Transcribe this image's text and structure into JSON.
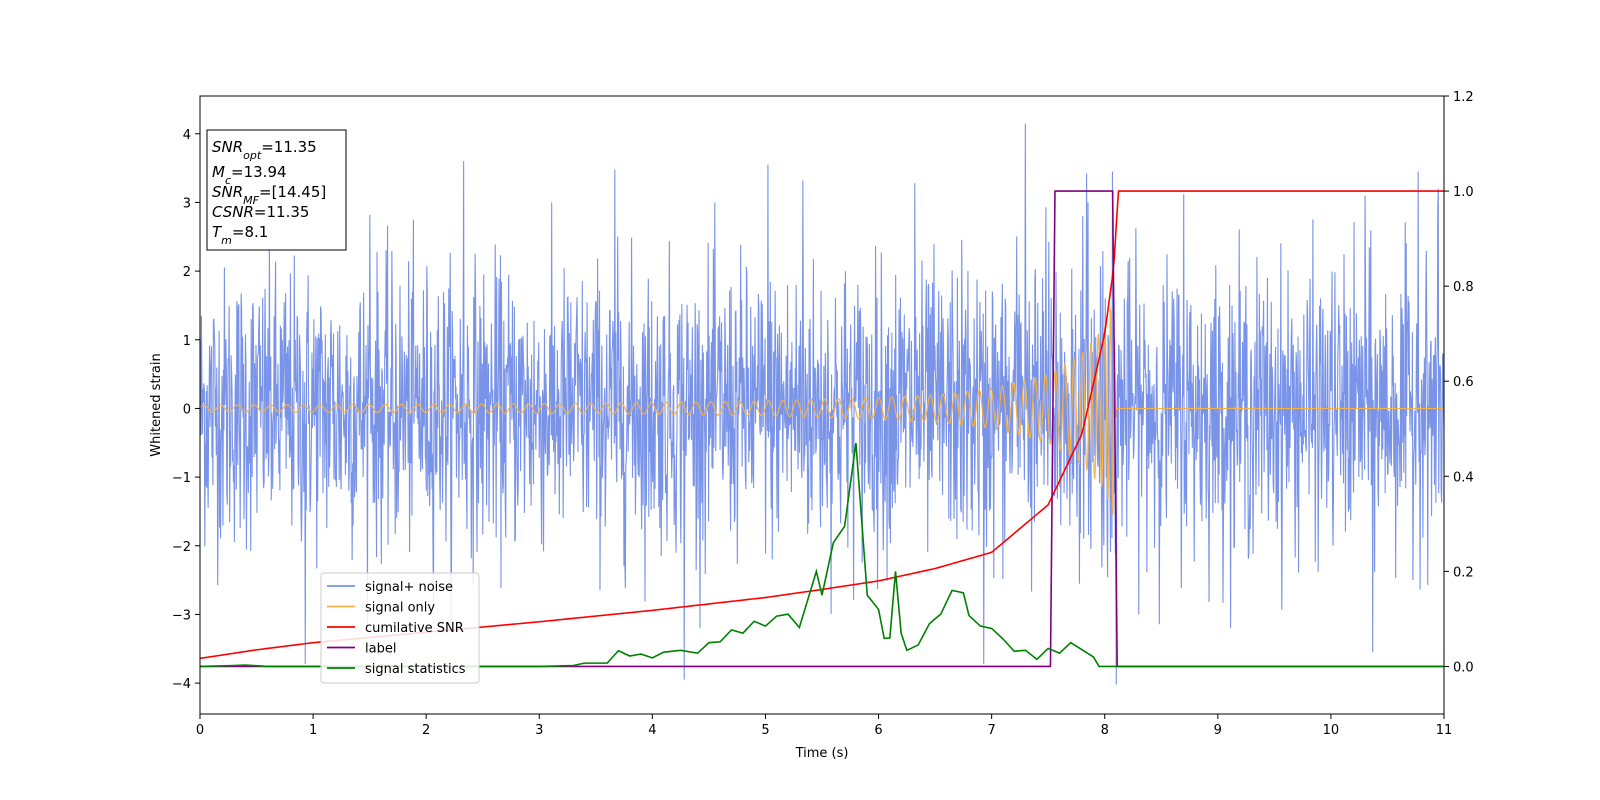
{
  "chart_data": {
    "type": "line",
    "title": "",
    "xlabel": "Time (s)",
    "ylabel": "Whitened strain",
    "y2label": "",
    "xlim": [
      0,
      11
    ],
    "ylim": [
      -4.45,
      4.55
    ],
    "y2lim": [
      -0.1,
      1.2
    ],
    "xticks": [
      0,
      1,
      2,
      3,
      4,
      5,
      6,
      7,
      8,
      9,
      10,
      11
    ],
    "yticks": [
      -4,
      -3,
      -2,
      -1,
      0,
      1,
      2,
      3,
      4
    ],
    "y2ticks": [
      0.0,
      0.2,
      0.4,
      0.6,
      0.8,
      1.0,
      1.2
    ],
    "grid": false,
    "legend_position": "lower-left",
    "info_box": [
      {
        "main": "SNR",
        "sub": "opt",
        "value": "=11.35"
      },
      {
        "main": "M",
        "sub": "c",
        "value": "=13.94"
      },
      {
        "main": "SNR",
        "sub": "MF",
        "value": "=[14.45]"
      },
      {
        "main": "CSNR",
        "sub": "",
        "value": "=11.35"
      },
      {
        "main": "T",
        "sub": "m",
        "value": "=8.1"
      }
    ],
    "series": [
      {
        "name": "signal+ noise",
        "color": "#7893e8",
        "axis": "left",
        "description_range": [
          -3.7,
          4.15
        ],
        "noise_std": 1.0,
        "peaks": [
          [
            0.93,
            -3.72
          ],
          [
            1.5,
            2.82
          ],
          [
            2.33,
            3.6
          ],
          [
            3.67,
            3.48
          ],
          [
            4.28,
            -3.95
          ],
          [
            5.02,
            3.55
          ],
          [
            5.33,
            3.32
          ],
          [
            6.32,
            3.28
          ],
          [
            6.93,
            -3.72
          ],
          [
            7.3,
            4.15
          ],
          [
            7.48,
            2.93
          ],
          [
            7.84,
            3.42
          ],
          [
            8.07,
            3.45
          ],
          [
            8.1,
            -4.02
          ],
          [
            8.7,
            3.12
          ],
          [
            10.3,
            3.1
          ],
          [
            10.77,
            3.45
          ],
          [
            10.95,
            3.2
          ],
          [
            10.37,
            -3.55
          ]
        ]
      },
      {
        "name": "signal only",
        "color": "#f5b14a",
        "axis": "left",
        "merger_time": 8.1,
        "points": [
          [
            0,
            0.05
          ],
          [
            1,
            0.055
          ],
          [
            2,
            0.06
          ],
          [
            3,
            0.07
          ],
          [
            4,
            0.085
          ],
          [
            5,
            0.11
          ],
          [
            6,
            0.16
          ],
          [
            6.5,
            0.2
          ],
          [
            7,
            0.29
          ],
          [
            7.5,
            0.5
          ],
          [
            7.8,
            0.8
          ],
          [
            8.0,
            1.2
          ],
          [
            8.08,
            1.6
          ],
          [
            8.1,
            0.0
          ],
          [
            11,
            0.0
          ]
        ]
      },
      {
        "name": "cumilative SNR",
        "color": "#ff0000",
        "axis": "right",
        "points": [
          [
            0,
            0.017
          ],
          [
            0.5,
            0.035
          ],
          [
            1,
            0.05
          ],
          [
            2,
            0.072
          ],
          [
            3,
            0.094
          ],
          [
            4,
            0.118
          ],
          [
            5,
            0.145
          ],
          [
            5.5,
            0.162
          ],
          [
            6,
            0.18
          ],
          [
            6.5,
            0.206
          ],
          [
            7,
            0.24
          ],
          [
            7.5,
            0.34
          ],
          [
            7.8,
            0.49
          ],
          [
            8.0,
            0.7
          ],
          [
            8.08,
            0.84
          ],
          [
            8.12,
            1.0
          ],
          [
            11,
            1.0
          ]
        ]
      },
      {
        "name": "label",
        "color": "#800080",
        "axis": "right",
        "points": [
          [
            0,
            0.0
          ],
          [
            7.52,
            0.0
          ],
          [
            7.56,
            1.0
          ],
          [
            8.07,
            1.0
          ],
          [
            8.11,
            0.0
          ],
          [
            11,
            0.0
          ]
        ]
      },
      {
        "name": "signal statistics",
        "color": "#008000",
        "axis": "right",
        "points": [
          [
            0,
            0.0
          ],
          [
            0.3,
            0.002
          ],
          [
            0.4,
            0.003
          ],
          [
            0.6,
            0.0
          ],
          [
            1.0,
            0.0
          ],
          [
            2.0,
            0.0
          ],
          [
            2.8,
            0.0
          ],
          [
            3.0,
            0.0
          ],
          [
            3.3,
            0.002
          ],
          [
            3.4,
            0.007
          ],
          [
            3.6,
            0.007
          ],
          [
            3.7,
            0.033
          ],
          [
            3.8,
            0.022
          ],
          [
            3.9,
            0.026
          ],
          [
            4.0,
            0.018
          ],
          [
            4.1,
            0.03
          ],
          [
            4.25,
            0.034
          ],
          [
            4.4,
            0.028
          ],
          [
            4.5,
            0.05
          ],
          [
            4.6,
            0.052
          ],
          [
            4.7,
            0.077
          ],
          [
            4.8,
            0.07
          ],
          [
            4.9,
            0.095
          ],
          [
            5.0,
            0.085
          ],
          [
            5.1,
            0.106
          ],
          [
            5.2,
            0.11
          ],
          [
            5.3,
            0.082
          ],
          [
            5.45,
            0.2
          ],
          [
            5.5,
            0.15
          ],
          [
            5.6,
            0.26
          ],
          [
            5.7,
            0.295
          ],
          [
            5.8,
            0.47
          ],
          [
            5.9,
            0.15
          ],
          [
            6.0,
            0.12
          ],
          [
            6.05,
            0.059
          ],
          [
            6.1,
            0.06
          ],
          [
            6.15,
            0.2
          ],
          [
            6.2,
            0.07
          ],
          [
            6.25,
            0.034
          ],
          [
            6.35,
            0.045
          ],
          [
            6.45,
            0.09
          ],
          [
            6.55,
            0.11
          ],
          [
            6.65,
            0.16
          ],
          [
            6.75,
            0.155
          ],
          [
            6.8,
            0.107
          ],
          [
            6.9,
            0.085
          ],
          [
            7.0,
            0.08
          ],
          [
            7.1,
            0.058
          ],
          [
            7.2,
            0.032
          ],
          [
            7.3,
            0.034
          ],
          [
            7.4,
            0.015
          ],
          [
            7.5,
            0.038
          ],
          [
            7.6,
            0.028
          ],
          [
            7.7,
            0.05
          ],
          [
            7.8,
            0.035
          ],
          [
            7.9,
            0.02
          ],
          [
            7.95,
            0.0
          ]
        ]
      }
    ]
  }
}
